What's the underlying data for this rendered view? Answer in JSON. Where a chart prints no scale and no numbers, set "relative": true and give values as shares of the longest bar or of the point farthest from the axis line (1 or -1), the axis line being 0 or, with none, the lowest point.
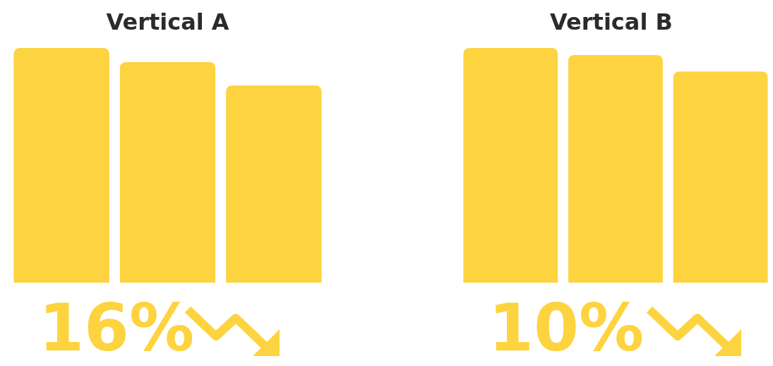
{
  "chart_data": [
    {
      "type": "bar",
      "title": "Vertical A",
      "categories": [
        null,
        null,
        null
      ],
      "values": [
        1,
        0.94,
        0.84
      ],
      "color": "#fdd33f",
      "relative": true,
      "annotations": [
        "16%"
      ]
    },
    {
      "type": "bar",
      "title": "Vertical B",
      "categories": [
        null,
        null,
        null
      ],
      "values": [
        1,
        0.97,
        0.9
      ],
      "color": "#fdd33f",
      "relative": true,
      "annotations": [
        "10%"
      ]
    }
  ]
}
